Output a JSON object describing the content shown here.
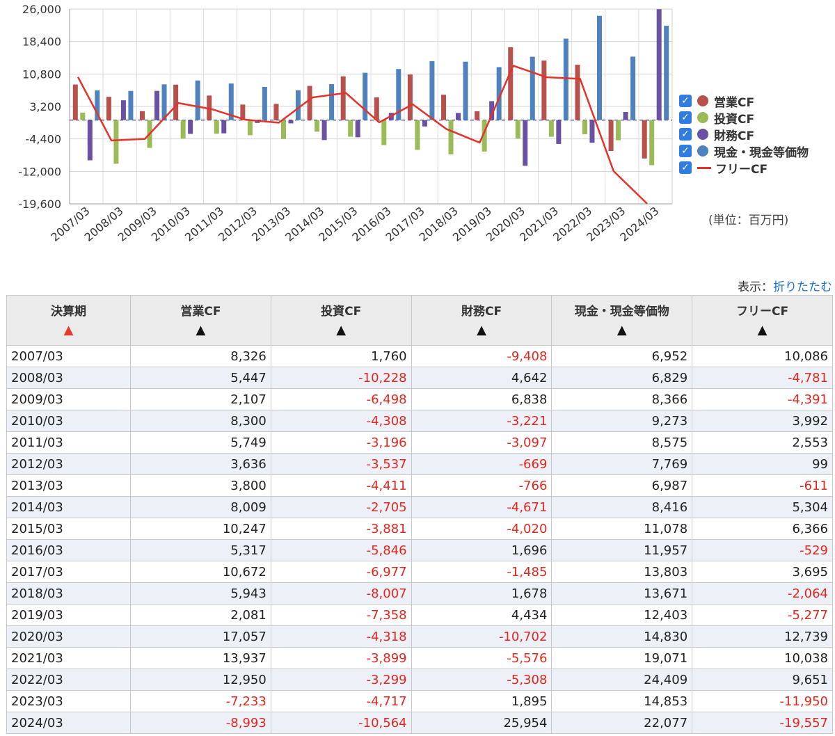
{
  "chart_data": {
    "type": "bar",
    "categories": [
      "2007/03",
      "2008/03",
      "2009/03",
      "2010/03",
      "2011/03",
      "2012/03",
      "2013/03",
      "2014/03",
      "2015/03",
      "2016/03",
      "2017/03",
      "2018/03",
      "2019/03",
      "2020/03",
      "2021/03",
      "2022/03",
      "2023/03",
      "2024/03"
    ],
    "series": [
      {
        "name": "営業CF",
        "kind": "bar",
        "color": "#b7514c",
        "values": [
          8326,
          5447,
          2107,
          8300,
          5749,
          3636,
          3800,
          8009,
          10247,
          5317,
          10672,
          5943,
          2081,
          17057,
          13937,
          12950,
          -7233,
          -8993
        ]
      },
      {
        "name": "投資CF",
        "kind": "bar",
        "color": "#9bbb59",
        "values": [
          1760,
          -10228,
          -6498,
          -4308,
          -3196,
          -3537,
          -4411,
          -2705,
          -3881,
          -5846,
          -6977,
          -8007,
          -7358,
          -4318,
          -3899,
          -3299,
          -4717,
          -10564
        ]
      },
      {
        "name": "財務CF",
        "kind": "bar",
        "color": "#6a52a3",
        "values": [
          -9408,
          4642,
          6838,
          -3221,
          -3097,
          -669,
          -766,
          -4671,
          -4020,
          1696,
          -1485,
          1678,
          4434,
          -10702,
          -5576,
          -5308,
          1895,
          25954
        ]
      },
      {
        "name": "現金・現金等価物",
        "kind": "bar",
        "color": "#4f81bd",
        "values": [
          6952,
          6829,
          8366,
          9273,
          8575,
          7769,
          6987,
          8416,
          11078,
          11957,
          13803,
          13671,
          12403,
          14830,
          19071,
          24409,
          14853,
          22077
        ]
      },
      {
        "name": "フリーCF",
        "kind": "line",
        "color": "#e5322a",
        "values": [
          10086,
          -4781,
          -4391,
          3992,
          2553,
          99,
          -611,
          5304,
          6366,
          -529,
          3695,
          -2064,
          -5277,
          12739,
          10038,
          9651,
          -11950,
          -19557
        ]
      }
    ],
    "y_ticks": [
      "26,000",
      "18,400",
      "10,800",
      "3,200",
      "-4,400",
      "-12,000",
      "-19,600"
    ],
    "ylim": [
      -19600,
      26000
    ],
    "grid": true,
    "legend": "right",
    "unit_label": "(単位：百万円)"
  },
  "display": {
    "label": "表示：",
    "link": "折りたたむ"
  },
  "table": {
    "headers": [
      "決算期",
      "営業CF",
      "投資CF",
      "財務CF",
      "現金・現金等価物",
      "フリーCF"
    ],
    "sort_arrow": "▲",
    "rows": [
      [
        "2007/03",
        "8,326",
        "1,760",
        "-9,408",
        "6,952",
        "10,086"
      ],
      [
        "2008/03",
        "5,447",
        "-10,228",
        "4,642",
        "6,829",
        "-4,781"
      ],
      [
        "2009/03",
        "2,107",
        "-6,498",
        "6,838",
        "8,366",
        "-4,391"
      ],
      [
        "2010/03",
        "8,300",
        "-4,308",
        "-3,221",
        "9,273",
        "3,992"
      ],
      [
        "2011/03",
        "5,749",
        "-3,196",
        "-3,097",
        "8,575",
        "2,553"
      ],
      [
        "2012/03",
        "3,636",
        "-3,537",
        "-669",
        "7,769",
        "99"
      ],
      [
        "2013/03",
        "3,800",
        "-4,411",
        "-766",
        "6,987",
        "-611"
      ],
      [
        "2014/03",
        "8,009",
        "-2,705",
        "-4,671",
        "8,416",
        "5,304"
      ],
      [
        "2015/03",
        "10,247",
        "-3,881",
        "-4,020",
        "11,078",
        "6,366"
      ],
      [
        "2016/03",
        "5,317",
        "-5,846",
        "1,696",
        "11,957",
        "-529"
      ],
      [
        "2017/03",
        "10,672",
        "-6,977",
        "-1,485",
        "13,803",
        "3,695"
      ],
      [
        "2018/03",
        "5,943",
        "-8,007",
        "1,678",
        "13,671",
        "-2,064"
      ],
      [
        "2019/03",
        "2,081",
        "-7,358",
        "4,434",
        "12,403",
        "-5,277"
      ],
      [
        "2020/03",
        "17,057",
        "-4,318",
        "-10,702",
        "14,830",
        "12,739"
      ],
      [
        "2021/03",
        "13,937",
        "-3,899",
        "-5,576",
        "19,071",
        "10,038"
      ],
      [
        "2022/03",
        "12,950",
        "-3,299",
        "-5,308",
        "24,409",
        "9,651"
      ],
      [
        "2023/03",
        "-7,233",
        "-4,717",
        "1,895",
        "14,853",
        "-11,950"
      ],
      [
        "2024/03",
        "-8,993",
        "-10,564",
        "25,954",
        "22,077",
        "-19,557"
      ]
    ]
  }
}
